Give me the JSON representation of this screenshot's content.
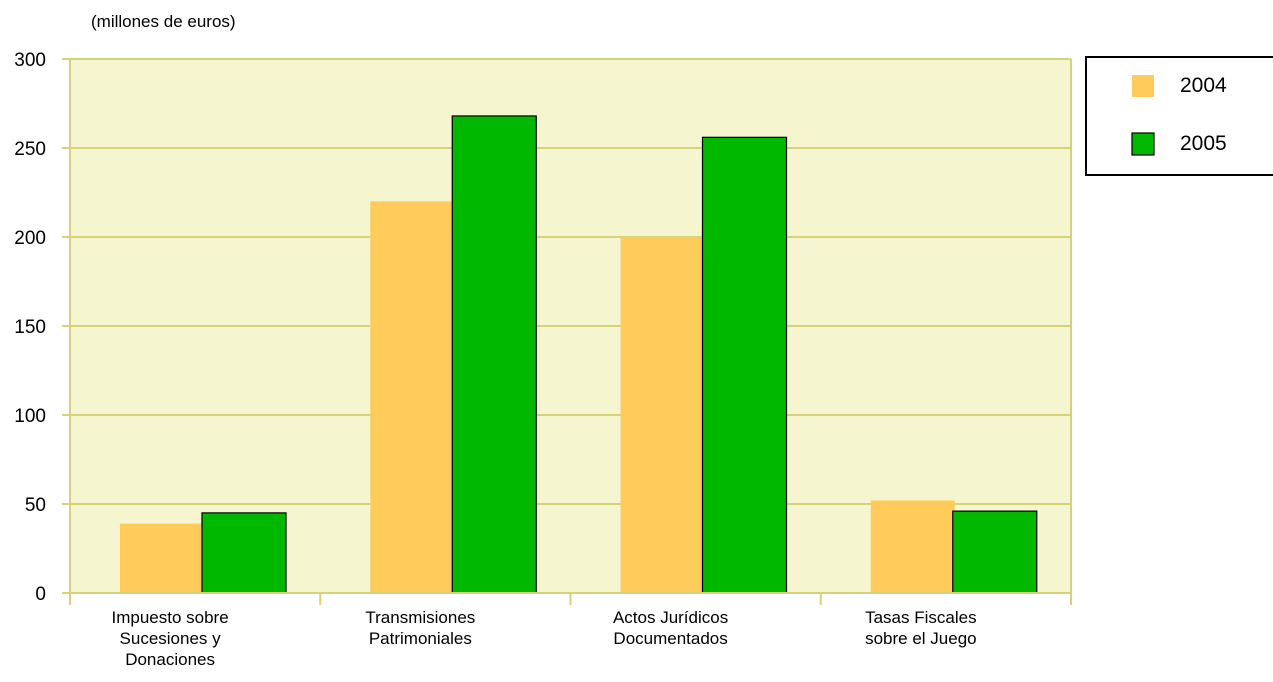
{
  "chart_data": {
    "type": "bar",
    "ylabel": "(millones de euros)",
    "ylim": [
      0,
      300
    ],
    "yticks": [
      0,
      50,
      100,
      150,
      200,
      250,
      300
    ],
    "grid": true,
    "legend_position": "top-right",
    "categories": [
      [
        "Impuesto sobre",
        "Sucesiones y",
        "Donaciones"
      ],
      [
        "Transmisiones",
        "Patrimoniales"
      ],
      [
        "Actos Jurídicos",
        "Documentados"
      ],
      [
        "Tasas Fiscales",
        "sobre el Juego"
      ]
    ],
    "series": [
      {
        "name": "2004",
        "color": "#FFCC5C",
        "values": [
          39,
          220,
          200,
          52
        ]
      },
      {
        "name": "2005",
        "color": "#00B800",
        "values": [
          45,
          268,
          256,
          46
        ]
      }
    ],
    "plot_background": "#F5F5CF",
    "grid_color": "#D6D27A"
  }
}
